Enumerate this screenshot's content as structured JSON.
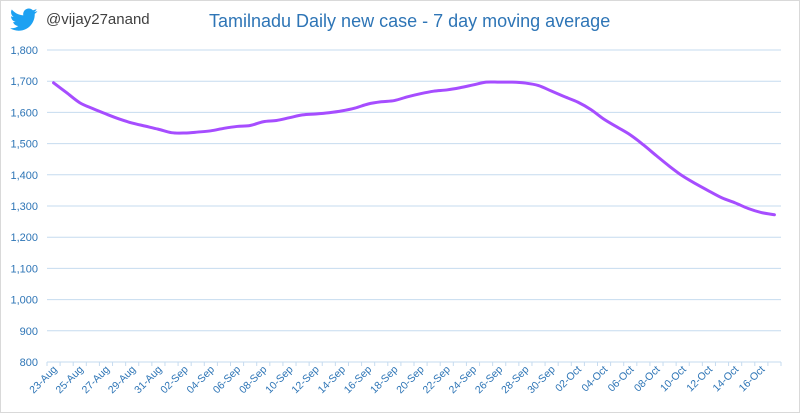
{
  "branding": {
    "handle": "@vijay27anand",
    "icon": "twitter-bird-icon",
    "icon_color": "#1da1f2"
  },
  "chart_data": {
    "type": "line",
    "title": "Tamilnadu Daily new case - 7 day moving average",
    "xlabel": "",
    "ylabel": "",
    "ylim": [
      800,
      1800
    ],
    "yticks": [
      800,
      900,
      1000,
      1100,
      1200,
      1300,
      1400,
      1500,
      1600,
      1700,
      1800
    ],
    "ytick_labels": [
      "800",
      "900",
      "1,000",
      "1,100",
      "1,200",
      "1,300",
      "1,400",
      "1,500",
      "1,600",
      "1,700",
      "1,800"
    ],
    "xtick_labels": [
      "23-Aug",
      "25-Aug",
      "27-Aug",
      "29-Aug",
      "31-Aug",
      "02-Sep",
      "04-Sep",
      "06-Sep",
      "08-Sep",
      "10-Sep",
      "12-Sep",
      "14-Sep",
      "16-Sep",
      "18-Sep",
      "20-Sep",
      "22-Sep",
      "24-Sep",
      "26-Sep",
      "28-Sep",
      "30-Sep",
      "02-Oct",
      "04-Oct",
      "06-Oct",
      "08-Oct",
      "10-Oct",
      "12-Oct",
      "14-Oct",
      "16-Oct"
    ],
    "grid": true,
    "line_color": "#a64dff",
    "tick_color": "#2e75b6",
    "grid_color": "#c6dbef",
    "series": [
      {
        "x": [
          "23-Aug",
          "24-Aug",
          "25-Aug",
          "26-Aug",
          "27-Aug",
          "28-Aug",
          "29-Aug",
          "30-Aug",
          "31-Aug",
          "01-Sep",
          "02-Sep",
          "03-Sep",
          "04-Sep",
          "05-Sep",
          "06-Sep",
          "07-Sep",
          "08-Sep",
          "09-Sep",
          "10-Sep",
          "11-Sep",
          "12-Sep",
          "13-Sep",
          "14-Sep",
          "15-Sep",
          "16-Sep",
          "17-Sep",
          "18-Sep",
          "19-Sep",
          "20-Sep",
          "21-Sep",
          "22-Sep",
          "23-Sep",
          "24-Sep",
          "25-Sep",
          "26-Sep",
          "27-Sep",
          "28-Sep",
          "29-Sep",
          "30-Sep",
          "01-Oct",
          "02-Oct",
          "03-Oct",
          "04-Oct",
          "05-Oct",
          "06-Oct",
          "07-Oct",
          "08-Oct",
          "09-Oct",
          "10-Oct",
          "11-Oct",
          "12-Oct",
          "13-Oct",
          "14-Oct",
          "15-Oct",
          "16-Oct",
          "17-Oct"
        ],
        "values": [
          1695,
          1663,
          1631,
          1612,
          1595,
          1579,
          1566,
          1556,
          1546,
          1535,
          1534,
          1537,
          1541,
          1549,
          1555,
          1558,
          1570,
          1574,
          1583,
          1592,
          1595,
          1599,
          1605,
          1614,
          1627,
          1634,
          1638,
          1650,
          1660,
          1668,
          1672,
          1679,
          1688,
          1697,
          1697,
          1697,
          1694,
          1686,
          1668,
          1650,
          1633,
          1609,
          1578,
          1553,
          1528,
          1496,
          1461,
          1427,
          1396,
          1371,
          1348,
          1326,
          1310,
          1292,
          1279,
          1272
        ]
      }
    ]
  }
}
